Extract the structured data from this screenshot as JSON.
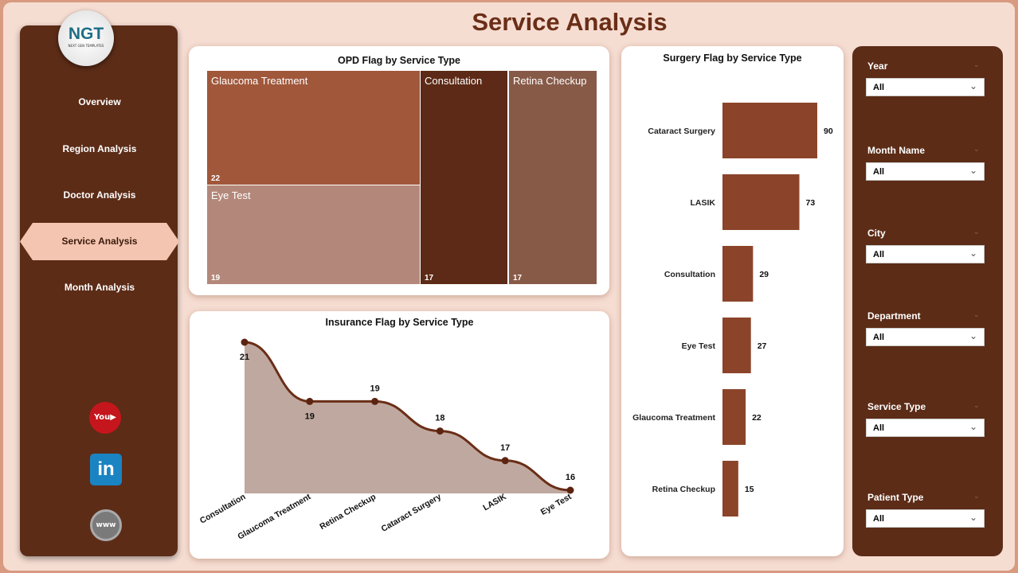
{
  "header": {
    "title": "Service Analysis"
  },
  "logo": {
    "text": "NGT",
    "subtitle": "NEXT GEN TEMPLATES"
  },
  "nav": [
    {
      "label": "Overview",
      "active": false
    },
    {
      "label": "Region Analysis",
      "active": false
    },
    {
      "label": "Doctor Analysis",
      "active": false
    },
    {
      "label": "Service Analysis",
      "active": true
    },
    {
      "label": "Month Analysis",
      "active": false
    }
  ],
  "social": [
    "youtube-icon",
    "linkedin-icon",
    "www-icon"
  ],
  "filters": [
    {
      "label": "Year",
      "value": "All"
    },
    {
      "label": "Month Name",
      "value": "All"
    },
    {
      "label": "City",
      "value": "All"
    },
    {
      "label": "Department",
      "value": "All"
    },
    {
      "label": "Service Type",
      "value": "All"
    },
    {
      "label": "Patient Type",
      "value": "All"
    }
  ],
  "colors": {
    "sidebar": "#5c2c17",
    "accent": "#f4c5b0",
    "bar": "#8b4429",
    "line": "#6a2e17",
    "area": "#bfa89f"
  },
  "chart_data": [
    {
      "type": "treemap",
      "title": "OPD Flag by Service Type",
      "categories": [
        "Glaucoma Treatment",
        "Eye Test",
        "Consultation",
        "Retina Checkup"
      ],
      "values": [
        22,
        19,
        17,
        17
      ],
      "colors": [
        "#a0573a",
        "#b3887a",
        "#5c2a16",
        "#875a48"
      ]
    },
    {
      "type": "area",
      "title": "Insurance Flag by Service Type",
      "categories": [
        "Consultation",
        "Glaucoma Treatment",
        "Retina Checkup",
        "Cataract Surgery",
        "LASIK",
        "Eye Test"
      ],
      "values": [
        21,
        19,
        19,
        18,
        17,
        16
      ]
    },
    {
      "type": "bar",
      "orientation": "horizontal",
      "title": "Surgery Flag by Service Type",
      "categories": [
        "Cataract Surgery",
        "LASIK",
        "Consultation",
        "Eye Test",
        "Glaucoma Treatment",
        "Retina Checkup"
      ],
      "values": [
        90,
        73,
        29,
        27,
        22,
        15
      ]
    }
  ]
}
